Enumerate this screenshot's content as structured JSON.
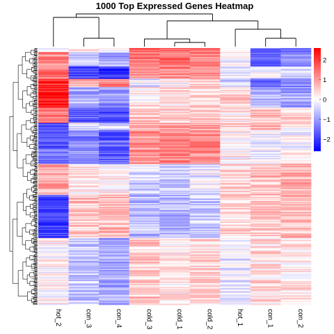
{
  "chart_data": {
    "type": "heatmap",
    "title": "1000 Top Expressed Genes Heatmap",
    "columns": [
      "hot_2",
      "con_3",
      "con_4",
      "cold_3",
      "cold_1",
      "cold_2",
      "hot_1",
      "con_1",
      "con_2"
    ],
    "n_rows": 1000,
    "color_scale": {
      "ticks": [
        2,
        1,
        0,
        -1,
        -2
      ],
      "tick_labels": [
        "2",
        "1",
        "0",
        "−1",
        "−2"
      ],
      "range": [
        -2.6,
        2.6
      ],
      "low_color": "#0000ff",
      "mid_color": "#ffffff",
      "high_color": "#ff0000"
    },
    "row_dendrogram": true,
    "column_dendrogram": true,
    "blocks": [
      {
        "rows": [
          0,
          14
        ],
        "values": [
          -0.5,
          0.2,
          0.1,
          1.4,
          1.6,
          1.5,
          0.3,
          -1.6,
          -1.8
        ]
      },
      {
        "rows": [
          14,
          70
        ],
        "values": [
          1.2,
          -0.6,
          -0.9,
          1.3,
          1.4,
          1.3,
          0.1,
          -1.5,
          -1.2
        ]
      },
      {
        "rows": [
          70,
          120
        ],
        "values": [
          1.3,
          -1.8,
          -2.2,
          1.0,
          1.3,
          1.2,
          -0.3,
          -0.2,
          -0.6
        ]
      },
      {
        "rows": [
          120,
          150
        ],
        "values": [
          2.1,
          0.8,
          1.3,
          -0.3,
          0.1,
          0.4,
          -0.5,
          -1.6,
          -1.3
        ]
      },
      {
        "rows": [
          150,
          230
        ],
        "values": [
          2.4,
          -0.8,
          -1.0,
          0.2,
          0.3,
          0.4,
          0.5,
          -0.7,
          -0.9
        ]
      },
      {
        "rows": [
          230,
          290
        ],
        "values": [
          1.2,
          -1.6,
          -1.9,
          0.6,
          0.4,
          0.5,
          0.2,
          0.6,
          0.3
        ]
      },
      {
        "rows": [
          290,
          320
        ],
        "values": [
          -1.8,
          -0.2,
          -0.4,
          0.8,
          1.0,
          0.9,
          0.5,
          0.8,
          0.1
        ]
      },
      {
        "rows": [
          320,
          450
        ],
        "values": [
          -1.5,
          -1.2,
          -1.6,
          1.1,
          1.3,
          1.2,
          0.1,
          -0.2,
          0.0
        ]
      },
      {
        "rows": [
          450,
          570
        ],
        "values": [
          0.9,
          0.3,
          0.2,
          -0.4,
          -0.6,
          -0.2,
          0.4,
          0.6,
          0.9
        ]
      },
      {
        "rows": [
          570,
          740
        ],
        "values": [
          -1.9,
          0.6,
          0.7,
          -0.7,
          -0.8,
          -0.5,
          0.4,
          0.5,
          0.6
        ]
      },
      {
        "rows": [
          740,
          1000
        ],
        "values": [
          0.1,
          -0.5,
          -0.8,
          0.5,
          0.2,
          0.4,
          -0.2,
          0.3,
          0.2
        ]
      }
    ]
  }
}
